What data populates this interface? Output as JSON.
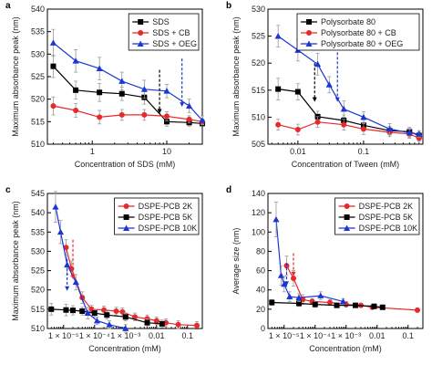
{
  "chart_data": [
    {
      "panel": "a",
      "type": "line",
      "xlabel": "Concentration of SDS (mM)",
      "ylabel": "Maximum absorbance peak (nm)",
      "xscale": "log",
      "xlim": [
        0.25,
        30
      ],
      "ylim": [
        510,
        540
      ],
      "xticks": [
        {
          "v": 1,
          "label": "1"
        },
        {
          "v": 10,
          "label": "10"
        }
      ],
      "yticks": [
        510,
        515,
        520,
        525,
        530,
        535,
        540
      ],
      "legend_position": "top-right",
      "series": [
        {
          "name": "SDS",
          "color": "#000000",
          "marker": "square",
          "x": [
            0.3,
            0.6,
            1.25,
            2.5,
            5,
            10,
            20,
            30
          ],
          "y": [
            527.3,
            522,
            521.5,
            521.2,
            520.4,
            515,
            514.8,
            514.6
          ],
          "err": [
            2.5,
            2,
            2,
            1.5,
            1.5,
            1,
            0.8,
            0.6
          ]
        },
        {
          "name": "SDS + CB",
          "color": "#e8282b",
          "marker": "circle",
          "x": [
            0.3,
            0.6,
            1.25,
            2.5,
            5,
            10,
            20,
            30
          ],
          "y": [
            518.5,
            517.5,
            516,
            516.5,
            516.5,
            516.2,
            515.5,
            515
          ],
          "err": [
            2,
            1.5,
            1.5,
            1.2,
            1.2,
            1,
            0.8,
            0.6
          ]
        },
        {
          "name": "SDS + OEG",
          "color": "#1c35d6",
          "marker": "triangle",
          "x": [
            0.3,
            0.6,
            1.25,
            2.5,
            5,
            10,
            20,
            30
          ],
          "y": [
            532.5,
            528.5,
            526.8,
            524,
            522.2,
            521.8,
            518.5,
            515.3
          ],
          "err": [
            3,
            2.5,
            2.5,
            2,
            2,
            1.5,
            1.5,
            1
          ]
        }
      ],
      "markers": [
        {
          "x": 8,
          "color": "#000000",
          "y_top": 526.5,
          "y_bottom": 517
        },
        {
          "x": 16,
          "color": "#1c35d6",
          "y_top": 529,
          "y_bottom": 518.5
        }
      ]
    },
    {
      "panel": "b",
      "type": "line",
      "xlabel": "Concentration of Tween (mM)",
      "ylabel": "Maximum absorbance peak (nm)",
      "xscale": "log",
      "xlim": [
        0.0035,
        0.8
      ],
      "ylim": [
        505,
        530
      ],
      "xticks": [
        {
          "v": 0.01,
          "label": "0.01"
        },
        {
          "v": 0.1,
          "label": "0.1"
        }
      ],
      "yticks": [
        505,
        510,
        515,
        520,
        525,
        530
      ],
      "legend_position": "top-right",
      "series": [
        {
          "name": "Polysorbate 80",
          "color": "#000000",
          "marker": "square",
          "x": [
            0.005,
            0.01,
            0.02,
            0.05,
            0.1,
            0.25,
            0.5,
            0.7
          ],
          "y": [
            515.2,
            514.7,
            510.1,
            509.4,
            508.5,
            507.5,
            507.3,
            506.6
          ],
          "err": [
            2,
            1.5,
            1,
            1,
            1,
            0.8,
            0.8,
            0.6
          ]
        },
        {
          "name": "Polysorbate 80 + CB",
          "color": "#e8282b",
          "marker": "circle",
          "x": [
            0.005,
            0.01,
            0.02,
            0.05,
            0.1,
            0.25,
            0.5,
            0.7
          ],
          "y": [
            508.6,
            507.7,
            509.1,
            508.6,
            507.8,
            507.2,
            506.9,
            506.1
          ],
          "err": [
            1,
            1,
            1,
            1,
            1,
            0.8,
            0.8,
            0.6
          ]
        },
        {
          "name": "Polysorbate 80 + OEG",
          "color": "#1c35d6",
          "marker": "triangle",
          "x": [
            0.005,
            0.01,
            0.02,
            0.03,
            0.05,
            0.1,
            0.25,
            0.5,
            0.7
          ],
          "y": [
            525,
            522.4,
            519.8,
            516,
            511.5,
            510,
            507.8,
            507.1,
            506.9
          ],
          "err": [
            2,
            2,
            2,
            1.5,
            1.5,
            1,
            1,
            0.8,
            0.6
          ]
        }
      ],
      "markers": [
        {
          "x": 0.018,
          "color": "#000000",
          "y_top": 520,
          "y_bottom": 513
        },
        {
          "x": 0.04,
          "color": "#1c35d6",
          "y_top": 522,
          "y_bottom": 513
        }
      ]
    },
    {
      "panel": "c",
      "type": "line",
      "xlabel": "Concentration (mM)",
      "ylabel": "Maximum absorbance peak (nm)",
      "xscale": "log",
      "xlim": [
        3e-06,
        0.3
      ],
      "ylim": [
        510,
        545
      ],
      "xticks": [
        {
          "v": 1e-05,
          "label": "1 × 10⁻⁵"
        },
        {
          "v": 0.0001,
          "label": "1 × 10⁻⁴"
        },
        {
          "v": 0.001,
          "label": "1 × 10⁻³"
        },
        {
          "v": 0.01,
          "label": "0.01"
        },
        {
          "v": 0.1,
          "label": "0.1"
        }
      ],
      "yticks": [
        510,
        515,
        520,
        525,
        530,
        535,
        540,
        545
      ],
      "legend_position": "top-right",
      "series": [
        {
          "name": "DSPE-PCB 2K",
          "color": "#e8282b",
          "marker": "circle",
          "x": [
            1.2e-05,
            1.8e-05,
            4e-05,
            8e-05,
            0.0002,
            0.0005,
            0.0008,
            0.002,
            0.005,
            0.01,
            0.02,
            0.05,
            0.2
          ],
          "y": [
            531,
            525.5,
            518,
            515,
            514.8,
            514.5,
            514.3,
            513,
            512.5,
            512,
            511.5,
            511,
            510.8
          ],
          "err": [
            2,
            2,
            1.5,
            1,
            1,
            1,
            1,
            1,
            1,
            1,
            1,
            1,
            1
          ]
        },
        {
          "name": "DSPE-PCB 5K",
          "color": "#000000",
          "marker": "square",
          "x": [
            4e-06,
            1.2e-05,
            2e-05,
            4e-05,
            0.0001,
            0.00025,
            0.001,
            0.005,
            0.015
          ],
          "y": [
            515,
            514.8,
            514.7,
            514.5,
            514,
            513.5,
            513,
            511.5,
            511.2
          ],
          "err": [
            1.5,
            1.5,
            1.2,
            1,
            1,
            1,
            1,
            1,
            1
          ]
        },
        {
          "name": "DSPE-PCB 10K",
          "color": "#1c35d6",
          "marker": "triangle",
          "x": [
            5.5e-06,
            8e-06,
            1.3e-05,
            2.5e-05,
            6e-05,
            0.00012,
            0.0003,
            0.001
          ],
          "y": [
            541.5,
            535,
            526.5,
            522,
            514,
            512,
            511,
            510
          ],
          "err": [
            4,
            3,
            2.5,
            2,
            1.5,
            1,
            1,
            1
          ]
        }
      ],
      "markers": [
        {
          "x": 1.3e-05,
          "color": "#1c35d6",
          "y_top": 528,
          "y_bottom": 520
        },
        {
          "x": 2e-05,
          "color": "#e8282b",
          "y_top": 533,
          "y_bottom": 523
        }
      ]
    },
    {
      "panel": "d",
      "type": "line",
      "xlabel": "Concentration (mM)",
      "ylabel": "Average size (nm)",
      "xscale": "log",
      "xlim": [
        3e-06,
        0.3
      ],
      "ylim": [
        0,
        140
      ],
      "xticks": [
        {
          "v": 1e-05,
          "label": "1 × 10⁻⁵"
        },
        {
          "v": 0.0001,
          "label": "1 × 10⁻⁴"
        },
        {
          "v": 0.001,
          "label": "1 × 10⁻³"
        },
        {
          "v": 0.01,
          "label": "0.01"
        },
        {
          "v": 0.1,
          "label": "0.1"
        }
      ],
      "yticks": [
        0,
        20,
        40,
        60,
        80,
        100,
        120,
        140
      ],
      "legend_position": "top-right",
      "series": [
        {
          "name": "DSPE-PCB 2K",
          "color": "#e8282b",
          "marker": "circle",
          "x": [
            1.2e-05,
            2e-05,
            4e-05,
            8e-05,
            0.0003,
            0.001,
            0.003,
            0.007,
            0.2
          ],
          "y": [
            65,
            52,
            30,
            28,
            27,
            25,
            24,
            22,
            19
          ],
          "err": [
            10,
            8,
            5,
            3,
            3,
            3,
            2,
            2,
            2
          ]
        },
        {
          "name": "DSPE-PCB 5K",
          "color": "#000000",
          "marker": "square",
          "x": [
            4e-06,
            3e-05,
            0.0001,
            0.0005,
            0.002,
            0.008,
            0.015
          ],
          "y": [
            27,
            26,
            25,
            24,
            24,
            23,
            22
          ],
          "err": [
            3,
            3,
            3,
            2,
            2,
            2,
            2
          ]
        },
        {
          "name": "DSPE-PCB 10K",
          "color": "#1c35d6",
          "marker": "triangle",
          "x": [
            5.5e-06,
            8e-06,
            1e-05,
            1.5e-05,
            3e-05,
            0.00015,
            0.0008
          ],
          "y": [
            113,
            55,
            46,
            33,
            32,
            34,
            28
          ],
          "err": [
            18,
            10,
            8,
            5,
            4,
            4,
            3
          ]
        }
      ],
      "markers": [
        {
          "x": 1.2e-05,
          "color": "#1c35d6",
          "y_top": 68,
          "y_bottom": 45
        },
        {
          "x": 2e-05,
          "color": "#e8282b",
          "y_top": 78,
          "y_bottom": 55
        }
      ]
    }
  ]
}
